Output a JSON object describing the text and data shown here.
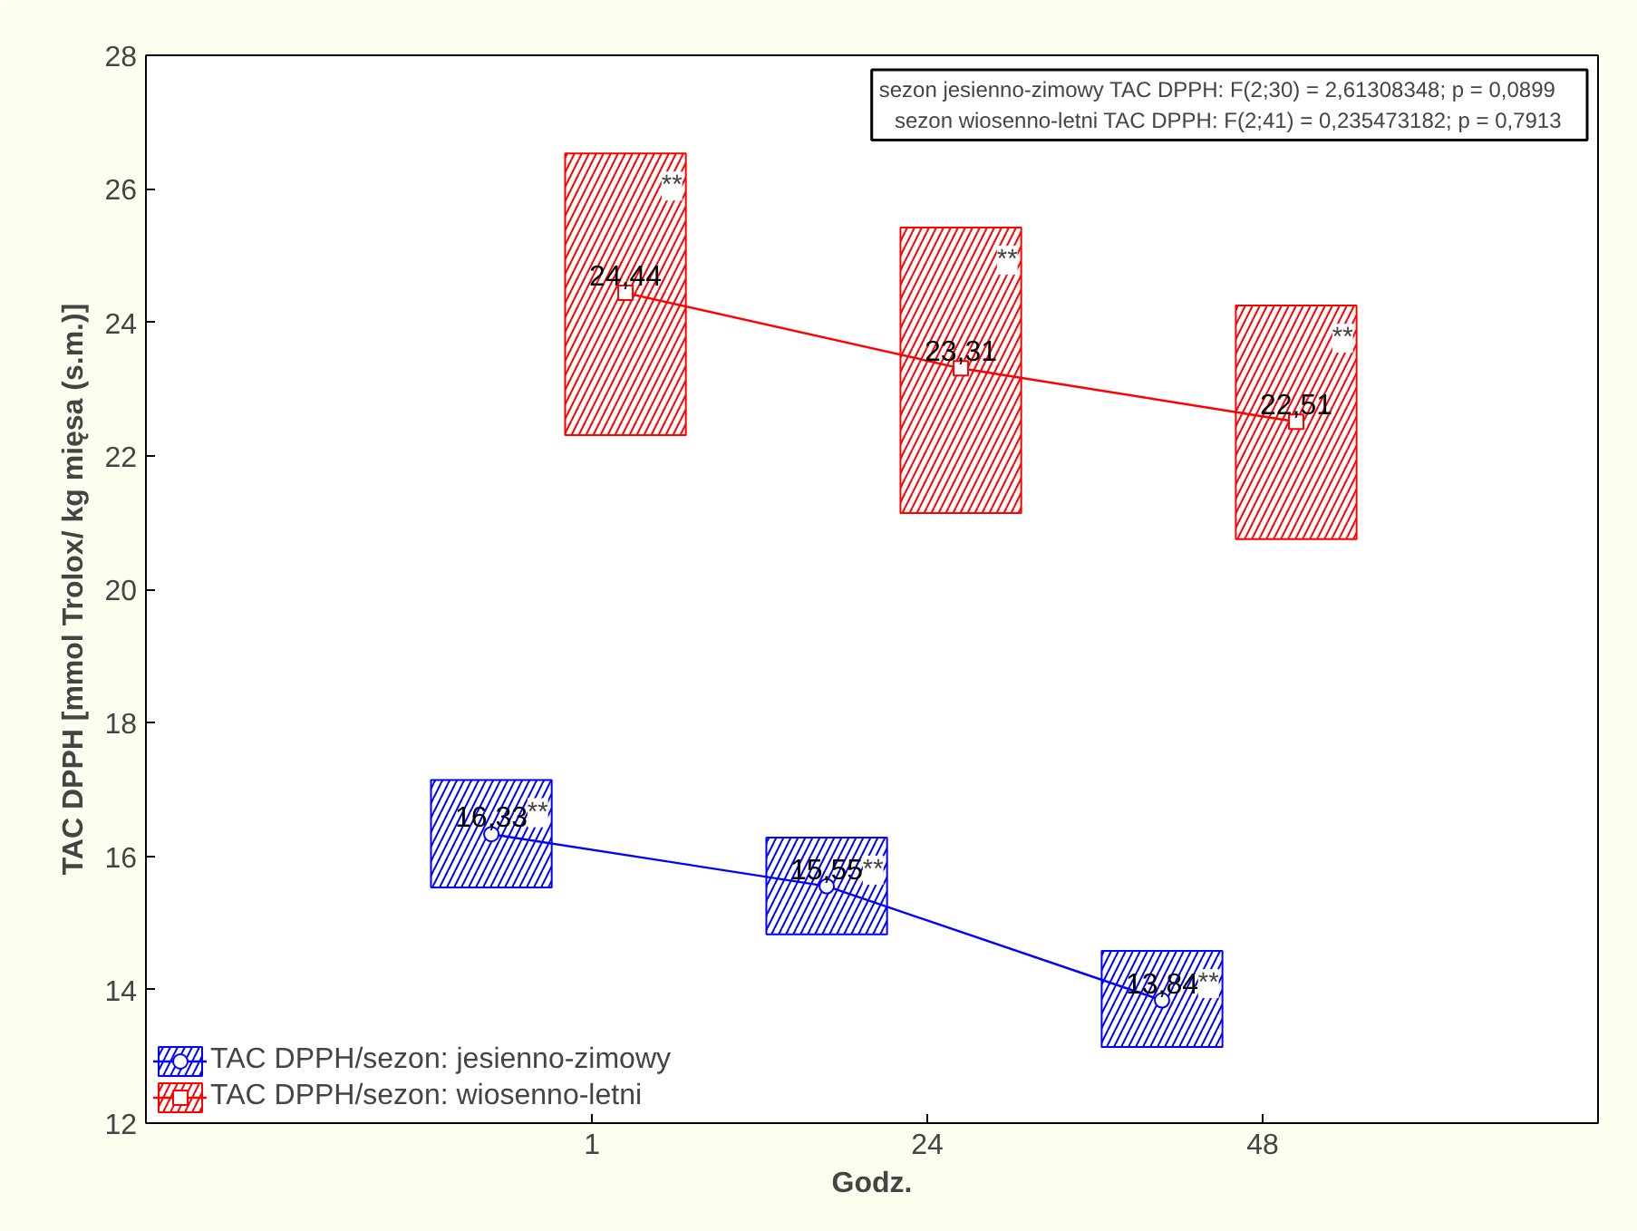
{
  "chart_data": {
    "type": "line",
    "xlabel": "Godz.",
    "ylabel": "TAC DPPH [mmol Trolox/ kg mięsa (s.m.)]",
    "categories": [
      "1",
      "24",
      "48"
    ],
    "ylim": [
      12,
      28
    ],
    "yticks": [
      12,
      14,
      16,
      18,
      20,
      22,
      24,
      26,
      28
    ],
    "grid": false,
    "legend": "bottom left",
    "line_style": "solid",
    "series": [
      {
        "type": "bar",
        "color": "#ff0000",
        "base": [
          22.31,
          21.14,
          20.75
        ],
        "values": [
          4.22,
          4.28,
          3.5
        ]
      },
      {
        "type": "bar",
        "color": "#0000ff",
        "base": [
          15.53,
          14.83,
          13.14
        ],
        "values": [
          1.61,
          1.45,
          1.44
        ]
      },
      {
        "name": "TAC DPPH/sezon: jesienno-zimowy",
        "color": "#0000ff",
        "marker": "circle",
        "values": [
          16.33,
          15.55,
          13.84
        ],
        "value_labels": [
          "16,33",
          "15,55",
          "13,84"
        ]
      },
      {
        "name": "TAC DPPH/sezon: wiosenno-letni",
        "color": "#ff0000",
        "marker": "square",
        "values": [
          24.44,
          23.31,
          22.51
        ],
        "value_labels": [
          "24,44",
          "23,31",
          "22,51"
        ]
      }
    ],
    "annotations": [
      "sezon jesienno-zimowy  TAC DPPH:   F(2;30) =  2,61308348; p = 0,0899",
      "sezon wiosenno-letni  TAC DPPH:   F(2;41) = 0,235473182; p = 0,7913",
      "**",
      "**",
      "**",
      "**",
      "**",
      "**"
    ]
  }
}
